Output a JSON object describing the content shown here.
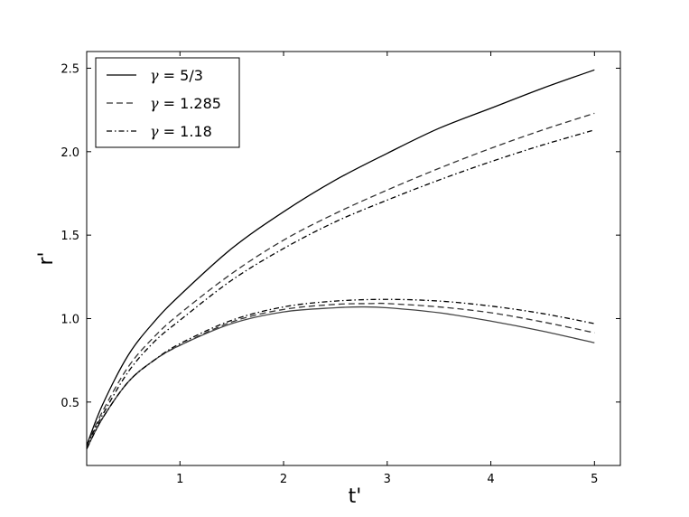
{
  "chart_data": {
    "type": "line",
    "xlabel": "t'",
    "ylabel": "r'",
    "xlim": [
      0.1,
      5.25
    ],
    "ylim": [
      0.12,
      2.6
    ],
    "xticks": [
      1,
      2,
      3,
      4,
      5
    ],
    "yticks": [
      0.5,
      1.0,
      1.5,
      2.0,
      2.5
    ],
    "xtick_labels": [
      "1",
      "2",
      "3",
      "4",
      "5"
    ],
    "ytick_labels": [
      "0.5",
      "1.0",
      "1.5",
      "2.0",
      "2.5"
    ],
    "grid": false,
    "legend_position": "top-left",
    "legend": [
      {
        "symbol": "γ",
        "text": " = 5/3",
        "style": "solid"
      },
      {
        "symbol": "γ",
        "text": " = 1.285",
        "style": "dashed"
      },
      {
        "symbol": "γ",
        "text": " = 1.18",
        "style": "dashdot"
      }
    ],
    "series": [
      {
        "group": "upper",
        "style": "solid",
        "color": "#000000",
        "x": [
          0.1,
          0.25,
          0.5,
          0.75,
          1.0,
          1.5,
          2.0,
          2.5,
          3.0,
          3.5,
          4.0,
          4.5,
          5.0
        ],
        "y": [
          0.24,
          0.48,
          0.78,
          0.98,
          1.14,
          1.42,
          1.64,
          1.83,
          1.99,
          2.14,
          2.26,
          2.38,
          2.49
        ]
      },
      {
        "group": "upper",
        "style": "dashed",
        "color": "#333333",
        "x": [
          0.1,
          0.25,
          0.5,
          0.75,
          1.0,
          1.5,
          2.0,
          2.5,
          3.0,
          3.5,
          4.0,
          4.5,
          5.0
        ],
        "y": [
          0.24,
          0.44,
          0.71,
          0.89,
          1.03,
          1.27,
          1.47,
          1.63,
          1.77,
          1.9,
          2.02,
          2.13,
          2.23
        ]
      },
      {
        "group": "upper",
        "style": "dashdot",
        "color": "#000000",
        "x": [
          0.1,
          0.25,
          0.5,
          0.75,
          1.0,
          1.5,
          2.0,
          2.5,
          3.0,
          3.5,
          4.0,
          4.5,
          5.0
        ],
        "y": [
          0.24,
          0.42,
          0.68,
          0.86,
          0.99,
          1.23,
          1.42,
          1.58,
          1.71,
          1.83,
          1.94,
          2.04,
          2.13
        ]
      },
      {
        "group": "lower",
        "style": "solid",
        "color": "#444444",
        "x": [
          0.1,
          0.25,
          0.5,
          0.75,
          1.0,
          1.5,
          2.0,
          2.5,
          2.75,
          3.0,
          3.5,
          4.0,
          4.5,
          5.0
        ],
        "y": [
          0.22,
          0.4,
          0.62,
          0.75,
          0.84,
          0.97,
          1.04,
          1.065,
          1.07,
          1.065,
          1.035,
          0.985,
          0.925,
          0.855
        ]
      },
      {
        "group": "lower",
        "style": "dashed",
        "color": "#333333",
        "x": [
          0.1,
          0.25,
          0.5,
          0.75,
          1.0,
          1.5,
          2.0,
          2.5,
          2.85,
          3.0,
          3.5,
          4.0,
          4.5,
          5.0
        ],
        "y": [
          0.22,
          0.4,
          0.62,
          0.75,
          0.84,
          0.98,
          1.055,
          1.085,
          1.09,
          1.09,
          1.07,
          1.035,
          0.98,
          0.915
        ]
      },
      {
        "group": "lower",
        "style": "dashdot",
        "color": "#000000",
        "x": [
          0.1,
          0.25,
          0.5,
          0.75,
          1.0,
          1.5,
          2.0,
          2.5,
          3.0,
          3.5,
          4.0,
          4.5,
          5.0
        ],
        "y": [
          0.22,
          0.4,
          0.62,
          0.75,
          0.85,
          0.99,
          1.07,
          1.105,
          1.115,
          1.105,
          1.075,
          1.03,
          0.97
        ]
      }
    ]
  }
}
